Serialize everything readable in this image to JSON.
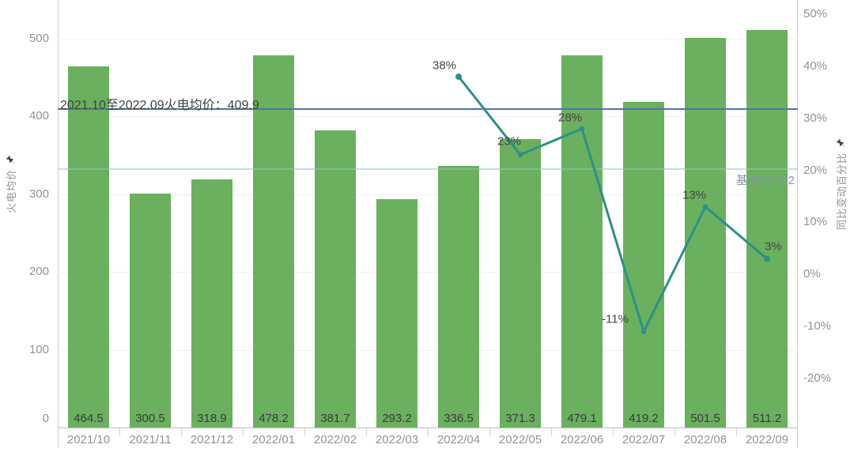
{
  "chart_data": {
    "type": "combo-bar-line",
    "categories": [
      "2021/10",
      "2021/11",
      "2021/12",
      "2022/01",
      "2022/02",
      "2022/03",
      "2022/04",
      "2022/05",
      "2022/06",
      "2022/07",
      "2022/08",
      "2022/09"
    ],
    "series": [
      {
        "name": "火电均价",
        "type": "bar",
        "axis": "left",
        "color": "#6bb05e",
        "values": [
          464.5,
          300.5,
          318.9,
          478.2,
          381.7,
          293.2,
          336.5,
          371.3,
          479.1,
          419.2,
          501.5,
          511.2
        ],
        "value_labels": [
          "464.5",
          "300.5",
          "318.9",
          "478.2",
          "381.7",
          "293.2",
          "336.5",
          "371.3",
          "479.1",
          "419.2",
          "501.5",
          "511.2"
        ]
      },
      {
        "name": "同比变动百分比",
        "type": "line",
        "axis": "right",
        "color": "#2b9089",
        "points": [
          {
            "category": "2022/04",
            "value": 38,
            "label": "38%",
            "label_offset": [
              -18,
              -14
            ]
          },
          {
            "category": "2022/05",
            "value": 23,
            "label": "23%",
            "label_offset": [
              -14,
              -17
            ]
          },
          {
            "category": "2022/06",
            "value": 28,
            "label": "28%",
            "label_offset": [
              -15,
              -14
            ]
          },
          {
            "category": "2022/07",
            "value": -11,
            "label": "-11%",
            "label_offset": [
              -36,
              -16
            ]
          },
          {
            "category": "2022/08",
            "value": 13,
            "label": "13%",
            "label_offset": [
              -14,
              -15
            ]
          },
          {
            "category": "2022/09",
            "value": 3,
            "label": "3%",
            "label_offset": [
              8,
              -16
            ]
          }
        ]
      }
    ],
    "left_axis": {
      "title": "火电均价",
      "ticks": [
        0,
        100,
        200,
        300,
        400,
        500
      ],
      "range": [
        0,
        550
      ],
      "grid": true
    },
    "right_axis": {
      "title": "同比变动百分比",
      "tick_values": [
        -20,
        -10,
        0,
        10,
        20,
        30,
        40,
        50
      ],
      "tick_labels": [
        "-20%",
        "-10%",
        "0%",
        "10%",
        "20%",
        "30%",
        "40%",
        "50%"
      ],
      "range": [
        -29.4,
        52.7
      ],
      "grid": false
    },
    "reference_lines": [
      {
        "label": "2021.10至2022.09火电均价：409.9",
        "value": 409.9,
        "axis": "left",
        "color": "#4a78ad"
      },
      {
        "label": "基准价:332",
        "value": 332,
        "axis": "left",
        "color": "#8dc7d6"
      }
    ]
  },
  "icons": {
    "left_axis_pin": "pin-icon",
    "right_axis_pin": "pin-icon"
  },
  "colors": {
    "bar": "#6bb05e",
    "line": "#2b9089",
    "avg_reference": "#4a78ad",
    "benchmark_reference": "#8dc7d6",
    "tick_text": "#8f9499",
    "bar_label_text": "#3a3a3a"
  }
}
